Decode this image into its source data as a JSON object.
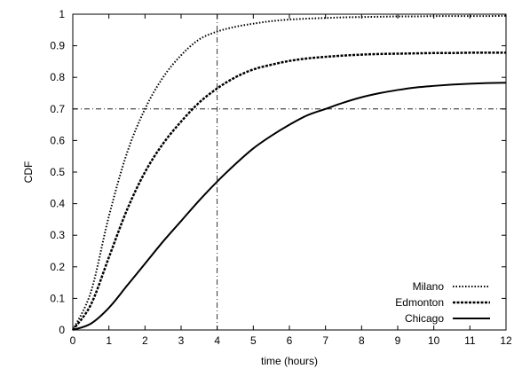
{
  "chart_data": {
    "type": "line",
    "title": "",
    "xlabel": "time (hours)",
    "ylabel": "CDF",
    "xlim": [
      0,
      12
    ],
    "ylim": [
      0,
      1
    ],
    "xticks": [
      "0",
      "1",
      "2",
      "3",
      "4",
      "5",
      "6",
      "7",
      "8",
      "9",
      "10",
      "11",
      "12"
    ],
    "yticks": [
      "0",
      "0.1",
      "0.2",
      "0.3",
      "0.4",
      "0.5",
      "0.6",
      "0.7",
      "0.8",
      "0.9",
      "1"
    ],
    "grid": false,
    "legend_position": "bottom-right",
    "reference_lines": [
      {
        "orientation": "horizontal",
        "value": 0.7
      },
      {
        "orientation": "vertical",
        "value": 4
      }
    ],
    "x": [
      0,
      0.5,
      1,
      1.5,
      2,
      2.5,
      3,
      3.5,
      4,
      4.5,
      5,
      5.5,
      6,
      6.5,
      7,
      7.5,
      8,
      8.5,
      9,
      9.5,
      10,
      10.5,
      11,
      11.5,
      12
    ],
    "series": [
      {
        "name": "Milano",
        "style": "dotted",
        "values": [
          0,
          0.12,
          0.36,
          0.56,
          0.7,
          0.8,
          0.87,
          0.92,
          0.945,
          0.96,
          0.97,
          0.978,
          0.983,
          0.986,
          0.988,
          0.99,
          0.991,
          0.992,
          0.993,
          0.993,
          0.994,
          0.994,
          0.994,
          0.994,
          0.995
        ]
      },
      {
        "name": "Edmonton",
        "style": "dashed",
        "values": [
          0,
          0.08,
          0.23,
          0.38,
          0.5,
          0.59,
          0.66,
          0.72,
          0.765,
          0.8,
          0.825,
          0.84,
          0.852,
          0.86,
          0.865,
          0.869,
          0.872,
          0.874,
          0.875,
          0.876,
          0.877,
          0.877,
          0.878,
          0.878,
          0.878
        ]
      },
      {
        "name": "Chicago",
        "style": "solid",
        "values": [
          0,
          0.02,
          0.07,
          0.14,
          0.21,
          0.28,
          0.345,
          0.41,
          0.47,
          0.525,
          0.575,
          0.615,
          0.65,
          0.68,
          0.7,
          0.72,
          0.737,
          0.75,
          0.76,
          0.768,
          0.773,
          0.777,
          0.78,
          0.782,
          0.783
        ]
      }
    ]
  }
}
